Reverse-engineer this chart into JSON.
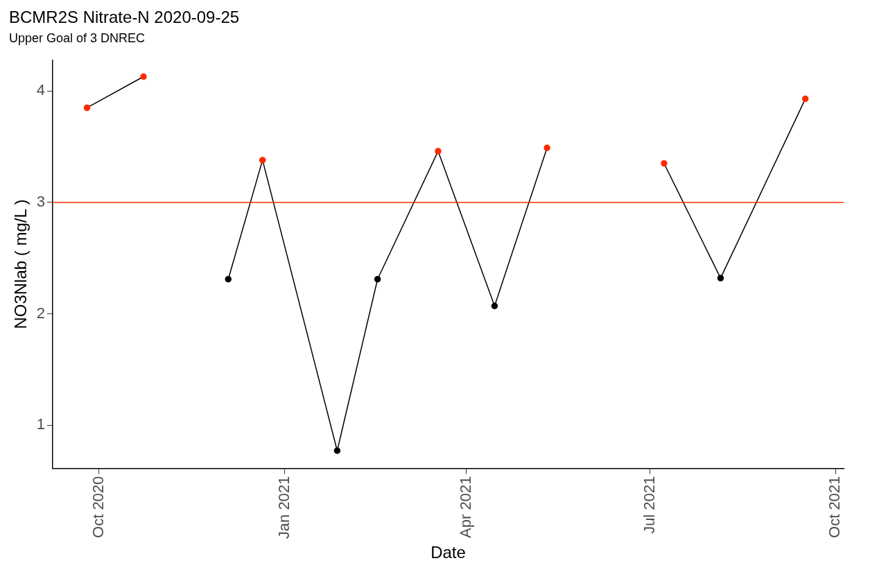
{
  "chart_data": {
    "type": "line",
    "title": "BCMR2S Nitrate-N 2020-09-25",
    "subtitle": "Upper Goal of 3 DNREC",
    "xlabel": "Date",
    "ylabel": "NO3Nlab ( mg/L )",
    "series": [
      {
        "color": "#000000",
        "x": [
          "2020-09-25",
          "2020-10-23"
        ],
        "values": [
          3.85,
          4.13
        ],
        "colors": [
          "#ff2a00",
          "#ff2a00"
        ]
      },
      {
        "color": "#000000",
        "x": [
          "2020-12-04",
          "2020-12-21",
          "2021-01-27",
          "2021-02-16",
          "2021-03-18",
          "2021-04-15",
          "2021-05-11"
        ],
        "values": [
          2.31,
          3.38,
          0.77,
          2.31,
          3.46,
          2.07,
          3.49
        ],
        "colors": [
          "#000000",
          "#ff2a00",
          "#000000",
          "#000000",
          "#ff2a00",
          "#000000",
          "#ff2a00"
        ]
      },
      {
        "color": "#000000",
        "x": [
          "2021-07-08",
          "2021-08-05",
          "2021-09-16"
        ],
        "values": [
          3.35,
          2.32,
          3.93
        ],
        "colors": [
          "#ff2a00",
          "#000000",
          "#ff2a00"
        ]
      }
    ],
    "xlim": [
      "2020-09-08",
      "2021-10-05"
    ],
    "xticks": [
      {
        "value": "2020-10-01",
        "label": "Oct 2020"
      },
      {
        "value": "2021-01-01",
        "label": "Jan 2021"
      },
      {
        "value": "2021-04-01",
        "label": "Apr 2021"
      },
      {
        "value": "2021-07-01",
        "label": "Jul 2021"
      },
      {
        "value": "2021-10-01",
        "label": "Oct 2021"
      }
    ],
    "ylim": [
      0.61,
      4.28
    ],
    "yticks": [
      1,
      2,
      3,
      4
    ],
    "ref_lines": [
      {
        "axis": "y",
        "value": 3,
        "color": "#ff2a00"
      }
    ],
    "grid": false,
    "legend": false,
    "marker": "circle",
    "line_style": "solid"
  }
}
